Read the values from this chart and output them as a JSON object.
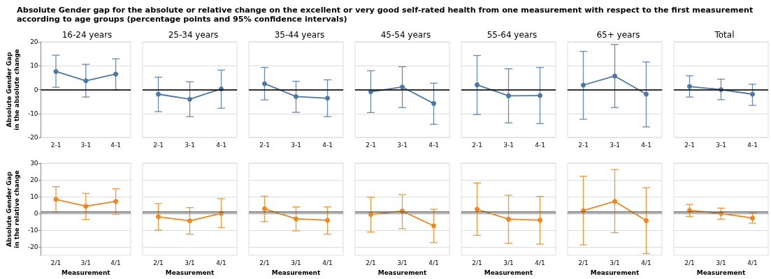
{
  "chart_data": [
    {
      "type": "line",
      "annotations": [
        "Absolute Gender gap for the absolute or relative change on the excellent or very good self-rated health from one measurement with respect to the first measurement according to age groups (percentage points and 95% confidence intervals)"
      ],
      "title": "16-24 years",
      "ylabel": "Absolute Gender Gap\nin the absolute change",
      "categories": [
        "2-1",
        "3-1",
        "4-1"
      ],
      "values": [
        7.6,
        3.7,
        6.5
      ],
      "errors": [
        [
          1.0,
          14.4
        ],
        [
          -3.1,
          10.6
        ],
        [
          -0.1,
          12.9
        ]
      ],
      "color": "#4c78a8",
      "ylim": [
        -20,
        20
      ],
      "yticks": [
        -20,
        -10,
        0,
        10,
        20
      ],
      "grid": "y",
      "marker": "circle",
      "line_style": "solid",
      "ref_lines": [
        {
          "axis": "y",
          "value": 0,
          "color": "#000000"
        }
      ]
    },
    {
      "type": "line",
      "title": "25-34 years",
      "categories": [
        "2-1",
        "3-1",
        "4-1"
      ],
      "values": [
        -1.9,
        -4.0,
        0.3
      ],
      "errors": [
        [
          -9.2,
          5.2
        ],
        [
          -11.3,
          3.3
        ],
        [
          -7.8,
          8.2
        ]
      ],
      "color": "#4c78a8",
      "ylim": [
        -20,
        20
      ],
      "yticks": [
        -20,
        -10,
        0,
        10,
        20
      ],
      "tick_labels": "x",
      "grid": "y",
      "marker": "circle",
      "line_style": "solid",
      "ref_lines": [
        {
          "axis": "y",
          "value": 0,
          "color": "#000000"
        }
      ]
    },
    {
      "type": "line",
      "title": "35-44 years",
      "categories": [
        "2-1",
        "3-1",
        "4-1"
      ],
      "values": [
        2.5,
        -2.9,
        -3.6
      ],
      "errors": [
        [
          -4.3,
          9.3
        ],
        [
          -9.5,
          3.5
        ],
        [
          -11.3,
          4.1
        ]
      ],
      "color": "#4c78a8",
      "ylim": [
        -20,
        20
      ],
      "yticks": [
        -20,
        -10,
        0,
        10,
        20
      ],
      "tick_labels": "x",
      "grid": "y",
      "marker": "circle",
      "line_style": "solid",
      "ref_lines": [
        {
          "axis": "y",
          "value": 0,
          "color": "#000000"
        }
      ]
    },
    {
      "type": "line",
      "title": "45-54 years",
      "categories": [
        "2-1",
        "3-1",
        "4-1"
      ],
      "values": [
        -0.9,
        1.1,
        -5.8
      ],
      "errors": [
        [
          -9.6,
          7.9
        ],
        [
          -7.5,
          9.6
        ],
        [
          -14.5,
          2.7
        ]
      ],
      "color": "#4c78a8",
      "ylim": [
        -20,
        20
      ],
      "yticks": [
        -20,
        -10,
        0,
        10,
        20
      ],
      "tick_labels": "x",
      "grid": "y",
      "marker": "circle",
      "line_style": "solid",
      "ref_lines": [
        {
          "axis": "y",
          "value": 0,
          "color": "#000000"
        }
      ]
    },
    {
      "type": "line",
      "title": "55-64 years",
      "categories": [
        "2-1",
        "3-1",
        "4-1"
      ],
      "values": [
        2.0,
        -2.6,
        -2.5
      ],
      "errors": [
        [
          -10.4,
          14.3
        ],
        [
          -13.9,
          8.7
        ],
        [
          -14.2,
          9.3
        ]
      ],
      "color": "#4c78a8",
      "ylim": [
        -20,
        20
      ],
      "yticks": [
        -20,
        -10,
        0,
        10,
        20
      ],
      "tick_labels": "x",
      "grid": "y",
      "marker": "circle",
      "line_style": "solid",
      "ref_lines": [
        {
          "axis": "y",
          "value": 0,
          "color": "#000000"
        }
      ]
    },
    {
      "type": "line",
      "title": "65+ years",
      "categories": [
        "2-1",
        "3-1",
        "4-1"
      ],
      "values": [
        1.9,
        5.7,
        -1.9
      ],
      "errors": [
        [
          -12.4,
          16.0
        ],
        [
          -7.5,
          18.9
        ],
        [
          -15.6,
          11.6
        ]
      ],
      "color": "#4c78a8",
      "ylim": [
        -20,
        20
      ],
      "yticks": [
        -20,
        -10,
        0,
        10,
        20
      ],
      "tick_labels": "x",
      "grid": "y",
      "marker": "circle",
      "line_style": "solid",
      "ref_lines": [
        {
          "axis": "y",
          "value": 0,
          "color": "#000000"
        }
      ]
    },
    {
      "type": "line",
      "title": "Total",
      "categories": [
        "2-1",
        "3-1",
        "4-1"
      ],
      "values": [
        1.3,
        0.0,
        -1.9
      ],
      "errors": [
        [
          -3.1,
          5.8
        ],
        [
          -4.2,
          4.4
        ],
        [
          -6.6,
          2.3
        ]
      ],
      "color": "#4c78a8",
      "ylim": [
        -20,
        20
      ],
      "yticks": [
        -20,
        -10,
        0,
        10,
        20
      ],
      "tick_labels": "x",
      "grid": "y",
      "marker": "circle",
      "line_style": "solid",
      "ref_lines": [
        {
          "axis": "y",
          "value": 0,
          "color": "#000000"
        }
      ]
    },
    {
      "type": "line",
      "xlabel": "Measurement",
      "ylabel": "Absolute Gender Gap\nin the relative change",
      "categories": [
        "2/1",
        "3/1",
        "4/1"
      ],
      "values": [
        8.4,
        4.3,
        7.2
      ],
      "errors": [
        [
          0.9,
          16.0
        ],
        [
          -3.6,
          12.0
        ],
        [
          -0.4,
          14.7
        ]
      ],
      "color": "#f58518",
      "ylim": [
        -25,
        30
      ],
      "yticks": [
        -20,
        -10,
        0,
        10,
        20,
        30
      ],
      "grid": "y",
      "marker": "circle",
      "line_style": "solid",
      "ref_lines": [
        {
          "axis": "y",
          "value": 1,
          "color": "#555555"
        }
      ]
    },
    {
      "type": "line",
      "xlabel": "Measurement",
      "categories": [
        "2/1",
        "3/1",
        "4/1"
      ],
      "values": [
        -2.0,
        -4.4,
        0.1
      ],
      "errors": [
        [
          -10.0,
          5.9
        ],
        [
          -12.4,
          3.5
        ],
        [
          -8.4,
          8.8
        ]
      ],
      "color": "#f58518",
      "ylim": [
        -25,
        30
      ],
      "yticks": [
        -20,
        -10,
        0,
        10,
        20,
        30
      ],
      "tick_labels": "x",
      "grid": "y",
      "marker": "circle",
      "line_style": "solid",
      "ref_lines": [
        {
          "axis": "y",
          "value": 1,
          "color": "#555555"
        }
      ]
    },
    {
      "type": "line",
      "xlabel": "Measurement",
      "categories": [
        "2/1",
        "3/1",
        "4/1"
      ],
      "values": [
        2.8,
        -3.2,
        -4.1
      ],
      "errors": [
        [
          -4.9,
          10.3
        ],
        [
          -10.4,
          3.9
        ],
        [
          -12.4,
          3.9
        ]
      ],
      "color": "#f58518",
      "ylim": [
        -25,
        30
      ],
      "yticks": [
        -20,
        -10,
        0,
        10,
        20,
        30
      ],
      "tick_labels": "x",
      "grid": "y",
      "marker": "circle",
      "line_style": "solid",
      "ref_lines": [
        {
          "axis": "y",
          "value": 1,
          "color": "#555555"
        }
      ]
    },
    {
      "type": "line",
      "xlabel": "Measurement",
      "categories": [
        "2/1",
        "3/1",
        "4/1"
      ],
      "values": [
        -0.6,
        1.4,
        -7.4
      ],
      "errors": [
        [
          -11.1,
          9.7
        ],
        [
          -9.1,
          11.2
        ],
        [
          -17.4,
          2.5
        ]
      ],
      "color": "#f58518",
      "ylim": [
        -25,
        30
      ],
      "yticks": [
        -20,
        -10,
        0,
        10,
        20,
        30
      ],
      "tick_labels": "x",
      "grid": "y",
      "marker": "circle",
      "line_style": "solid",
      "ref_lines": [
        {
          "axis": "y",
          "value": 1,
          "color": "#555555"
        }
      ]
    },
    {
      "type": "line",
      "xlabel": "Measurement",
      "categories": [
        "2/1",
        "3/1",
        "4/1"
      ],
      "values": [
        2.5,
        -3.4,
        -4.0
      ],
      "errors": [
        [
          -13.1,
          18.2
        ],
        [
          -17.8,
          10.9
        ],
        [
          -18.3,
          10.2
        ]
      ],
      "color": "#f58518",
      "ylim": [
        -25,
        30
      ],
      "yticks": [
        -20,
        -10,
        0,
        10,
        20,
        30
      ],
      "tick_labels": "x",
      "grid": "y",
      "marker": "circle",
      "line_style": "solid",
      "ref_lines": [
        {
          "axis": "y",
          "value": 1,
          "color": "#555555"
        }
      ]
    },
    {
      "type": "line",
      "xlabel": "Measurement",
      "categories": [
        "2/1",
        "3/1",
        "4/1"
      ],
      "values": [
        1.7,
        7.2,
        -4.3
      ],
      "errors": [
        [
          -18.8,
          22.2
        ],
        [
          -11.5,
          26.2
        ],
        [
          -24.0,
          15.4
        ]
      ],
      "color": "#f58518",
      "ylim": [
        -25,
        30
      ],
      "yticks": [
        -20,
        -10,
        0,
        10,
        20,
        30
      ],
      "tick_labels": "x",
      "grid": "y",
      "marker": "circle",
      "line_style": "solid",
      "ref_lines": [
        {
          "axis": "y",
          "value": 1,
          "color": "#555555"
        }
      ]
    },
    {
      "type": "line",
      "xlabel": "Measurement",
      "categories": [
        "2/1",
        "3/1",
        "4/1"
      ],
      "values": [
        1.8,
        0.0,
        -2.8
      ],
      "errors": [
        [
          -1.8,
          5.4
        ],
        [
          -3.4,
          3.2
        ],
        [
          -5.8,
          0.5
        ]
      ],
      "color": "#f58518",
      "ylim": [
        -25,
        30
      ],
      "yticks": [
        -20,
        -10,
        0,
        10,
        20,
        30
      ],
      "tick_labels": "x",
      "grid": "y",
      "marker": "circle",
      "line_style": "solid",
      "ref_lines": [
        {
          "axis": "y",
          "value": 1,
          "color": "#555555"
        }
      ]
    }
  ]
}
